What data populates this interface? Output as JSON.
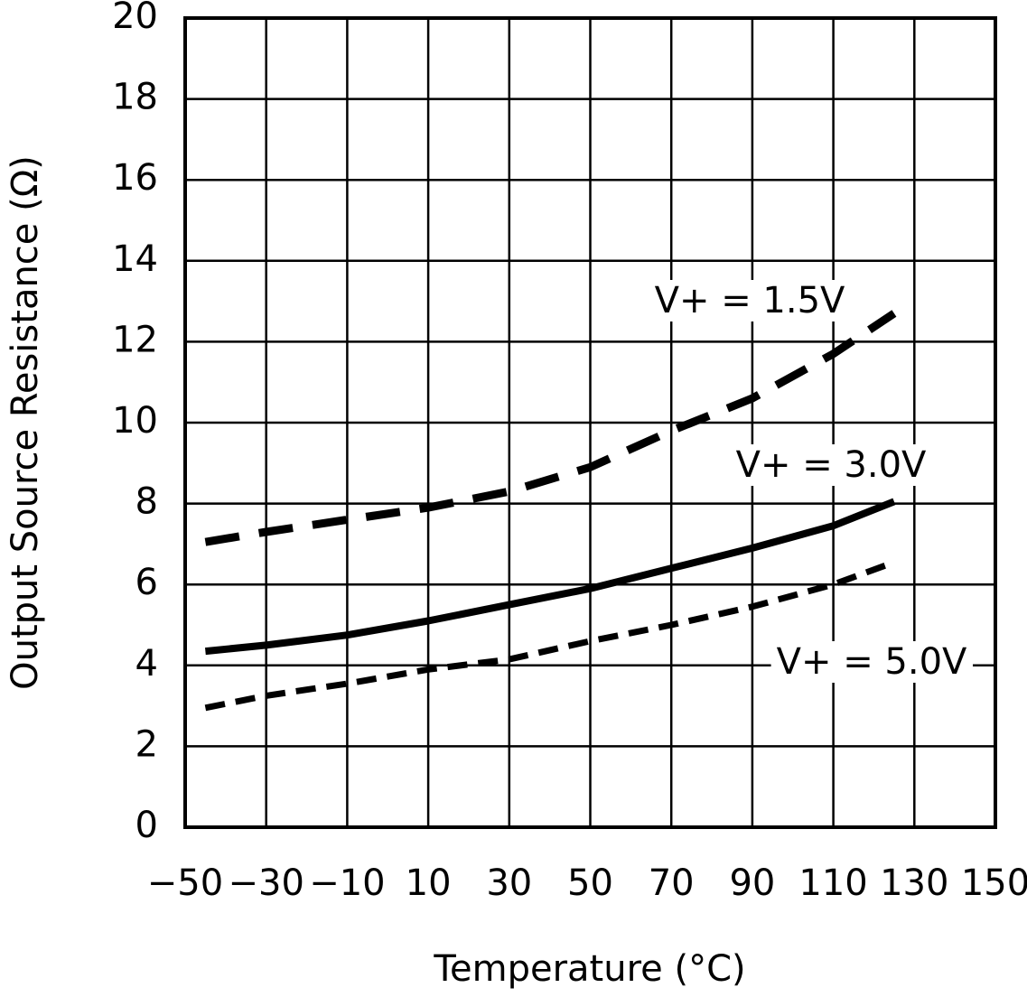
{
  "chart_data": {
    "type": "line",
    "xlabel": "Temperature (°C)",
    "ylabel": "Output Source Resistance (Ω)",
    "x": [
      -45,
      -30,
      -10,
      10,
      30,
      50,
      70,
      90,
      110,
      125
    ],
    "series": [
      {
        "name": "V+ = 1.5V",
        "color": "#000000",
        "values": [
          7.05,
          7.3,
          7.6,
          7.9,
          8.3,
          8.9,
          9.8,
          10.6,
          11.7,
          12.7
        ]
      },
      {
        "name": "V+ = 3.0V",
        "color": "#000000",
        "values": [
          4.35,
          4.5,
          4.75,
          5.1,
          5.5,
          5.9,
          6.4,
          6.9,
          7.45,
          8.05
        ]
      },
      {
        "name": "V+ = 5.0V",
        "color": "#000000",
        "values": [
          2.95,
          3.25,
          3.55,
          3.9,
          4.15,
          4.6,
          5.0,
          5.45,
          6.0,
          6.55
        ]
      }
    ],
    "xlim": [
      -50,
      150
    ],
    "xticks": [
      {
        "value": -50,
        "label": "−50"
      },
      {
        "value": -30,
        "label": "−30"
      },
      {
        "value": -10,
        "label": "−10"
      },
      10,
      30,
      50,
      70,
      90,
      110,
      130,
      150
    ],
    "ylim": [
      0,
      20
    ],
    "yticks": [
      0,
      2,
      4,
      6,
      8,
      10,
      12,
      14,
      16,
      18,
      20
    ],
    "grid": true
  }
}
